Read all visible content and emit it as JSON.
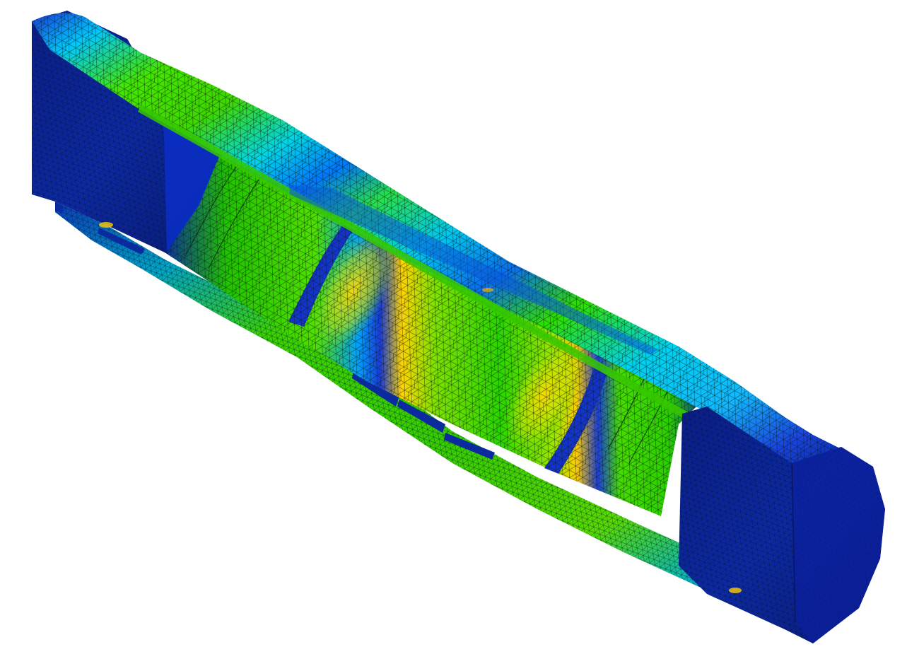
{
  "scene": {
    "subject": "fea-mesh-cutaway-tube",
    "background_color": "#ffffff",
    "colormap": [
      "#00008b",
      "#0a2fd6",
      "#00b4ff",
      "#00e8d0",
      "#2ee600",
      "#8ff000",
      "#ffe100",
      "#ff9a00",
      "#ff2a00"
    ],
    "mesh_line_color": "#0b1a10"
  }
}
